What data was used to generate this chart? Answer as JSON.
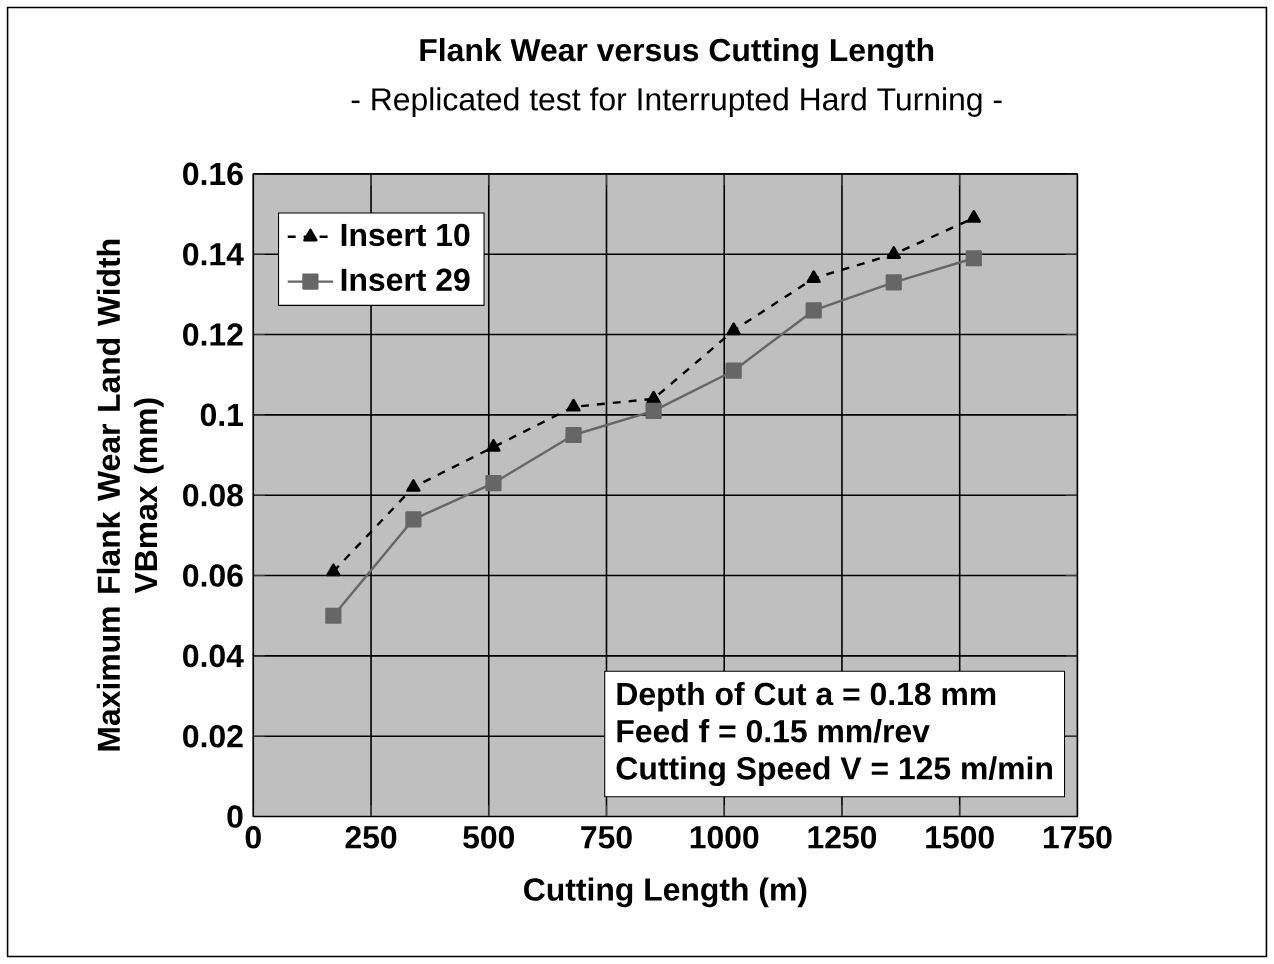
{
  "chart_data": {
    "type": "line",
    "title": "Flank Wear versus Cutting Length",
    "subtitle": "- Replicated test for Interrupted Hard Turning -",
    "xlabel": "Cutting Length (m)",
    "ylabel": "Maximum Flank Wear Land Width\nVBmax (mm)",
    "x": [
      170,
      340,
      510,
      680,
      850,
      1020,
      1190,
      1360,
      1530
    ],
    "series": [
      {
        "name": "Insert 10",
        "color": "#000000",
        "marker": "triangle",
        "line_style": "dashed",
        "values": [
          0.061,
          0.082,
          0.092,
          0.102,
          0.104,
          0.121,
          0.134,
          0.14,
          0.149
        ]
      },
      {
        "name": "Insert 29",
        "color": "#666666",
        "marker": "square",
        "line_style": "solid",
        "values": [
          0.05,
          0.074,
          0.083,
          0.095,
          0.101,
          0.111,
          0.126,
          0.133,
          0.139
        ]
      }
    ],
    "xlim": [
      0,
      1750
    ],
    "xticks": [
      0,
      250,
      500,
      750,
      1000,
      1250,
      1500,
      1750
    ],
    "ylim": [
      0,
      0.16
    ],
    "yticks": [
      {
        "value": 0,
        "label": "0"
      },
      {
        "value": 0.02,
        "label": "0.02"
      },
      {
        "value": 0.04,
        "label": "0.04"
      },
      {
        "value": 0.06,
        "label": "0.06"
      },
      {
        "value": 0.08,
        "label": "0.08"
      },
      {
        "value": 0.1,
        "label": "0.1"
      },
      {
        "value": 0.12,
        "label": "0.12"
      },
      {
        "value": 0.14,
        "label": "0.14"
      },
      {
        "value": 0.16,
        "label": "0.16"
      }
    ],
    "grid": true,
    "legend": "top left",
    "annotations": [
      "Depth of Cut a = 0.18 mm",
      "Feed f  = 0.15 mm/rev",
      "Cutting Speed V = 125 m/min"
    ]
  }
}
